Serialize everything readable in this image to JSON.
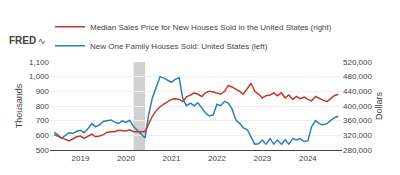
{
  "chart_data": {
    "type": "line",
    "annotations": [
      "FRED",
      "∿"
    ],
    "x": [
      2018.42,
      2018.5,
      2018.58,
      2018.67,
      2018.75,
      2018.83,
      2018.92,
      2019.0,
      2019.08,
      2019.17,
      2019.25,
      2019.33,
      2019.42,
      2019.5,
      2019.58,
      2019.67,
      2019.75,
      2019.83,
      2019.92,
      2020.0,
      2020.08,
      2020.17,
      2020.42,
      2020.5,
      2020.58,
      2020.67,
      2020.75,
      2020.83,
      2020.92,
      2021.0,
      2021.08,
      2021.17,
      2021.25,
      2021.33,
      2021.42,
      2021.5,
      2021.58,
      2021.67,
      2021.75,
      2021.83,
      2021.92,
      2022.0,
      2022.08,
      2022.17,
      2022.25,
      2022.33,
      2022.42,
      2022.5,
      2022.58,
      2022.67,
      2022.75,
      2022.83,
      2022.92,
      2023.0,
      2023.08,
      2023.17,
      2023.25,
      2023.33,
      2023.42,
      2023.5,
      2023.58,
      2023.67,
      2023.75,
      2023.83,
      2023.92,
      2024.0,
      2024.08,
      2024.17,
      2024.25,
      2024.33,
      2024.42,
      2024.5,
      2024.58,
      2024.67
    ],
    "series": [
      {
        "name": "Median Sales Price for New Houses Sold in the United States (right)",
        "color": "#c0392b",
        "axis": "y2",
        "values": [
          322000,
          318000,
          312000,
          308000,
          305000,
          310000,
          316000,
          318000,
          312000,
          318000,
          323000,
          316000,
          318000,
          322000,
          328000,
          330000,
          330000,
          334000,
          332000,
          332000,
          335000,
          330000,
          330000,
          352000,
          372000,
          388000,
          398000,
          405000,
          412000,
          418000,
          420000,
          418000,
          412000,
          425000,
          430000,
          436000,
          432000,
          426000,
          436000,
          440000,
          438000,
          436000,
          432000,
          440000,
          456000,
          452000,
          446000,
          440000,
          432000,
          448000,
          462000,
          440000,
          432000,
          422000,
          428000,
          430000,
          436000,
          428000,
          436000,
          422000,
          430000,
          418000,
          426000,
          420000,
          424000,
          418000,
          414000,
          426000,
          420000,
          416000,
          412000,
          420000,
          428000,
          432000
        ]
      },
      {
        "name": "New One Family Houses Sold: United States (left)",
        "color": "#2980b9",
        "values": [
          620,
          605,
          580,
          600,
          618,
          612,
          628,
          635,
          618,
          648,
          680,
          658,
          672,
          695,
          702,
          705,
          692,
          680,
          698,
          688,
          702,
          658,
          582,
          742,
          855,
          940,
          1000,
          990,
          975,
          962,
          982,
          992,
          850,
          802,
          820,
          802,
          822,
          782,
          752,
          732,
          740,
          812,
          802,
          832,
          820,
          782,
          702,
          682,
          650,
          638,
          592,
          540,
          542,
          568,
          540,
          578,
          540,
          568,
          538,
          570,
          540,
          578,
          568,
          578,
          558,
          562,
          658,
          700,
          680,
          672,
          680,
          700,
          720,
          730
        ]
      }
    ],
    "xlim": [
      2018.33,
      2024.75
    ],
    "xticks": [
      2019,
      2020,
      2021,
      2022,
      2023,
      2024
    ],
    "ylim": [
      500,
      1100
    ],
    "yticks": [
      500,
      600,
      700,
      800,
      900,
      {
        "value": 1000,
        "label": "1,000"
      },
      {
        "value": 1100,
        "label": "1,100"
      }
    ],
    "y2lim": [
      280000,
      520000
    ],
    "y2ticks": [
      {
        "value": 280000,
        "label": "280,000"
      },
      {
        "value": 320000,
        "label": "320,000"
      },
      {
        "value": 360000,
        "label": "360,000"
      },
      {
        "value": 400000,
        "label": "400,000"
      },
      {
        "value": 440000,
        "label": "440,000"
      },
      {
        "value": 480000,
        "label": "480,000"
      },
      {
        "value": 520000,
        "label": "520,000"
      }
    ],
    "ylabel": "Thousands",
    "y2label": "Dollars",
    "grid": true,
    "legend": "top left",
    "shaded_region": {
      "x": [
        2020.17,
        2020.42
      ],
      "color": "#c8c8c8"
    }
  }
}
